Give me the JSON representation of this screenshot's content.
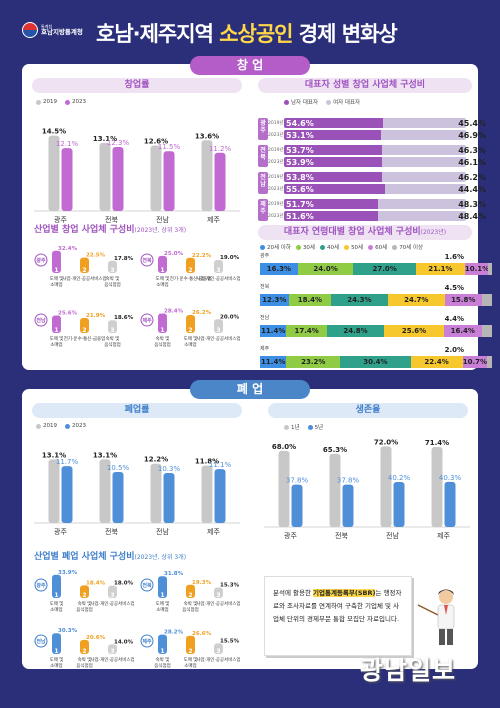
{
  "header": {
    "logo_line1": "통계청",
    "logo_line2": "호남지방통계청",
    "title_pre": "호남·제주지역 ",
    "title_hl": "소상공인",
    "title_post": " 경제 변화상"
  },
  "startup": {
    "banner": "창 업",
    "rate_title": "창업률",
    "legend": [
      "2019",
      "2023"
    ],
    "industry_title": "산업별 창업 사업체 구성비",
    "industry_sub": "(2023년, 상위 3개)",
    "gender_title": "대표자 성별 창업 사업체 구성비",
    "gender_legend": [
      "남자 대표자",
      "여자 대표자"
    ],
    "age_title": "대표자 연령대별 창업 사업체 구성비",
    "age_sub": "(2023년)",
    "age_legend": [
      "20세 이하",
      "30세",
      "40세",
      "50세",
      "60세",
      "70세 이상"
    ]
  },
  "closure": {
    "banner": "폐 업",
    "rate_title": "폐업률",
    "legend": [
      "2019",
      "2023"
    ],
    "survival_title": "생존율",
    "survival_legend": [
      "1년",
      "5년"
    ],
    "industry_title": "산업별 폐업 사업체 구성비",
    "industry_sub": "(2023년, 상위 3개)"
  },
  "chart_data": [
    {
      "type": "bar",
      "title": "창업률",
      "categories": [
        "광주",
        "전북",
        "전남",
        "제주"
      ],
      "series": [
        {
          "name": "2019",
          "values": [
            14.5,
            13.1,
            12.6,
            13.6
          ]
        },
        {
          "name": "2023",
          "values": [
            12.1,
            12.3,
            11.5,
            11.2
          ]
        }
      ],
      "unit": "%"
    },
    {
      "type": "bar",
      "title": "폐업률",
      "categories": [
        "광주",
        "전북",
        "전남",
        "제주"
      ],
      "series": [
        {
          "name": "2019",
          "values": [
            13.1,
            13.1,
            12.2,
            11.8
          ]
        },
        {
          "name": "2023",
          "values": [
            11.7,
            10.5,
            10.3,
            11.1
          ]
        }
      ],
      "unit": "%"
    },
    {
      "type": "bar",
      "title": "생존율",
      "categories": [
        "광주",
        "전북",
        "전남",
        "제주"
      ],
      "series": [
        {
          "name": "1년",
          "values": [
            68.0,
            65.3,
            72.0,
            71.4
          ]
        },
        {
          "name": "5년",
          "values": [
            37.8,
            37.8,
            40.2,
            40.3
          ]
        }
      ],
      "unit": "%"
    },
    {
      "type": "bar",
      "title": "대표자 성별 창업 사업체 구성비",
      "groups": [
        {
          "region": "광주",
          "rows": [
            {
              "year": "2019년",
              "male": 54.6,
              "female": 45.4
            },
            {
              "year": "2023년",
              "male": 53.1,
              "female": 46.9
            }
          ]
        },
        {
          "region": "전북",
          "rows": [
            {
              "year": "2019년",
              "male": 53.7,
              "female": 46.3
            },
            {
              "year": "2023년",
              "male": 53.9,
              "female": 46.1
            }
          ]
        },
        {
          "region": "전남",
          "rows": [
            {
              "year": "2019년",
              "male": 53.8,
              "female": 46.2
            },
            {
              "year": "2023년",
              "male": 55.6,
              "female": 44.4
            }
          ]
        },
        {
          "region": "제주",
          "rows": [
            {
              "year": "2019년",
              "male": 51.7,
              "female": 48.3
            },
            {
              "year": "2023년",
              "male": 51.6,
              "female": 48.4
            }
          ]
        }
      ]
    },
    {
      "type": "bar",
      "title": "대표자 연령대별 창업 사업체 구성비",
      "categories": [
        "20세 이하",
        "30세",
        "40세",
        "50세",
        "60세",
        "70세 이상"
      ],
      "colors": [
        "#3d8fe6",
        "#8fcb44",
        "#2fa08a",
        "#f7c82e",
        "#c97fd8",
        "#b6b6b6"
      ],
      "rows": [
        {
          "region": "광주",
          "values": [
            16.3,
            24.0,
            27.0,
            21.1,
            10.1,
            1.6
          ]
        },
        {
          "region": "전북",
          "values": [
            12.3,
            18.4,
            24.3,
            24.7,
            15.8,
            4.5
          ]
        },
        {
          "region": "전남",
          "values": [
            11.4,
            17.4,
            24.8,
            25.6,
            16.4,
            4.4
          ]
        },
        {
          "region": "제주",
          "values": [
            11.4,
            23.2,
            30.4,
            22.4,
            10.7,
            2.0
          ]
        }
      ]
    },
    {
      "type": "bar",
      "title": "산업별 창업 사업체 구성비",
      "groups": [
        {
          "region": "광주",
          "items": [
            {
              "rank": "1",
              "label": "도매 및 소매업",
              "value": 32.4
            },
            {
              "rank": "2",
              "label": "사업·개인·공공서비스업",
              "value": 22.5
            },
            {
              "rank": "3",
              "label": "숙박 및 음식점업",
              "value": 17.8
            }
          ]
        },
        {
          "region": "전북",
          "items": [
            {
              "rank": "1",
              "label": "도매 및 소매업",
              "value": 25.0
            },
            {
              "rank": "2",
              "label": "전기·운수·통신·금융업",
              "value": 22.2
            },
            {
              "rank": "3",
              "label": "사업·개인·공공서비스업",
              "value": 19.0
            }
          ]
        },
        {
          "region": "전남",
          "items": [
            {
              "rank": "1",
              "label": "도매 및 소매업",
              "value": 25.6
            },
            {
              "rank": "2",
              "label": "전기·운수·통신·금융업",
              "value": 21.9
            },
            {
              "rank": "3",
              "label": "숙박 및 음식점업",
              "value": 18.6
            }
          ]
        },
        {
          "region": "제주",
          "items": [
            {
              "rank": "1",
              "label": "숙박 및 음식점업",
              "value": 28.4
            },
            {
              "rank": "2",
              "label": "도매 및 소매업",
              "value": 26.2
            },
            {
              "rank": "3",
              "label": "사업·개인·공공서비스업",
              "value": 20.0
            }
          ]
        }
      ]
    },
    {
      "type": "bar",
      "title": "산업별 폐업 사업체 구성비",
      "groups": [
        {
          "region": "광주",
          "items": [
            {
              "rank": "1",
              "label": "도매 및 소매업",
              "value": 33.9
            },
            {
              "rank": "2",
              "label": "숙박 및 음식점업",
              "value": 18.4
            },
            {
              "rank": "3",
              "label": "사업·개인·공공서비스업",
              "value": 18.0
            }
          ]
        },
        {
          "region": "전북",
          "items": [
            {
              "rank": "1",
              "label": "도매 및 소매업",
              "value": 31.8
            },
            {
              "rank": "2",
              "label": "숙박 및 음식점업",
              "value": 19.3
            },
            {
              "rank": "3",
              "label": "사업·개인·공공서비스업",
              "value": 15.3
            }
          ]
        },
        {
          "region": "전남",
          "items": [
            {
              "rank": "1",
              "label": "도매 및 소매업",
              "value": 30.3
            },
            {
              "rank": "2",
              "label": "숙박 및 음식점업",
              "value": 20.6
            },
            {
              "rank": "3",
              "label": "사업·개인·공공서비스업",
              "value": 14.0
            }
          ]
        },
        {
          "region": "제주",
          "items": [
            {
              "rank": "1",
              "label": "숙박 및 음식점업",
              "value": 28.2
            },
            {
              "rank": "2",
              "label": "도매 및 소매업",
              "value": 26.6
            },
            {
              "rank": "3",
              "label": "사업·개인·공공서비스업",
              "value": 15.5
            }
          ]
        }
      ]
    }
  ],
  "colors": {
    "purple": "#b56fcb",
    "light_purple": "#c9a8d6",
    "blue": "#4f8fd8",
    "orange": "#f0a020",
    "gray": "#c8c8c8"
  },
  "note": {
    "t1": "분석에 활용한 ",
    "hl": "기업통계등록부(SBR)",
    "t2": "는 행정자료와 조사자료를 연계하여 구축한 기업체 및 사업체 단위의 경제부문 통합 모집단 자료입니다."
  },
  "brand": "광남일보"
}
